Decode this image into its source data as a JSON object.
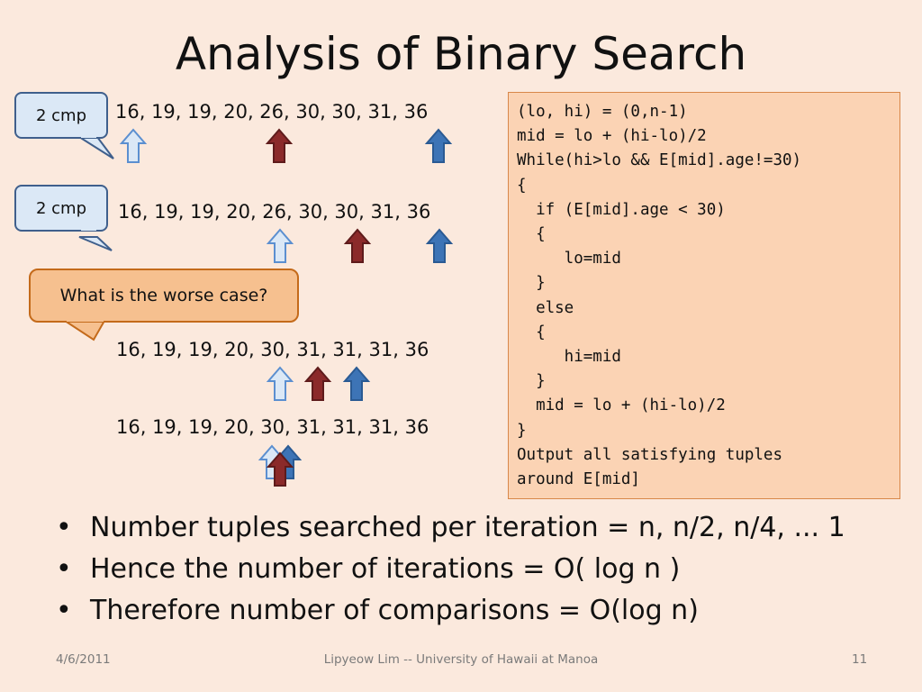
{
  "title": "Analysis of Binary Search",
  "callouts": {
    "cmp1": "2 cmp",
    "cmp2": "2 cmp",
    "worse": "What is the worse case?"
  },
  "rows": [
    "16, 19, 19, 20, 26, 30, 30, 31, 36",
    "16, 19, 19, 20, 26, 30, 30, 31, 36",
    "16, 19, 19, 20, 30, 31, 31, 31, 36",
    "16, 19, 19, 20, 30, 31, 31, 31, 36"
  ],
  "code": [
    "(lo, hi) = (0,n-1)",
    "mid = lo + (hi-lo)/2",
    "While(hi>lo && E[mid].age!=30)",
    "{",
    "  if (E[mid].age < 30)",
    "  {",
    "     lo=mid",
    "  }",
    "  else",
    "  {",
    "     hi=mid",
    "  }",
    "  mid = lo + (hi-lo)/2",
    "}",
    "Output all satisfying tuples",
    "around E[mid]"
  ],
  "bullets": [
    "Number tuples searched per iteration = n, n/2, n/4, ... 1",
    "Hence the number of iterations = O( log n )",
    "Therefore number of comparisons = O(log n)"
  ],
  "bullet_glyph": "•",
  "footer": {
    "date": "4/6/2011",
    "center": "Lipyeow Lim -- University of Hawaii at Manoa",
    "page": "11"
  },
  "colors": {
    "lo_arrow": "#dbe8f6",
    "mid_arrow": "#8b2a2a",
    "hi_arrow": "#3d74b6",
    "background": "#fbe9dd"
  }
}
